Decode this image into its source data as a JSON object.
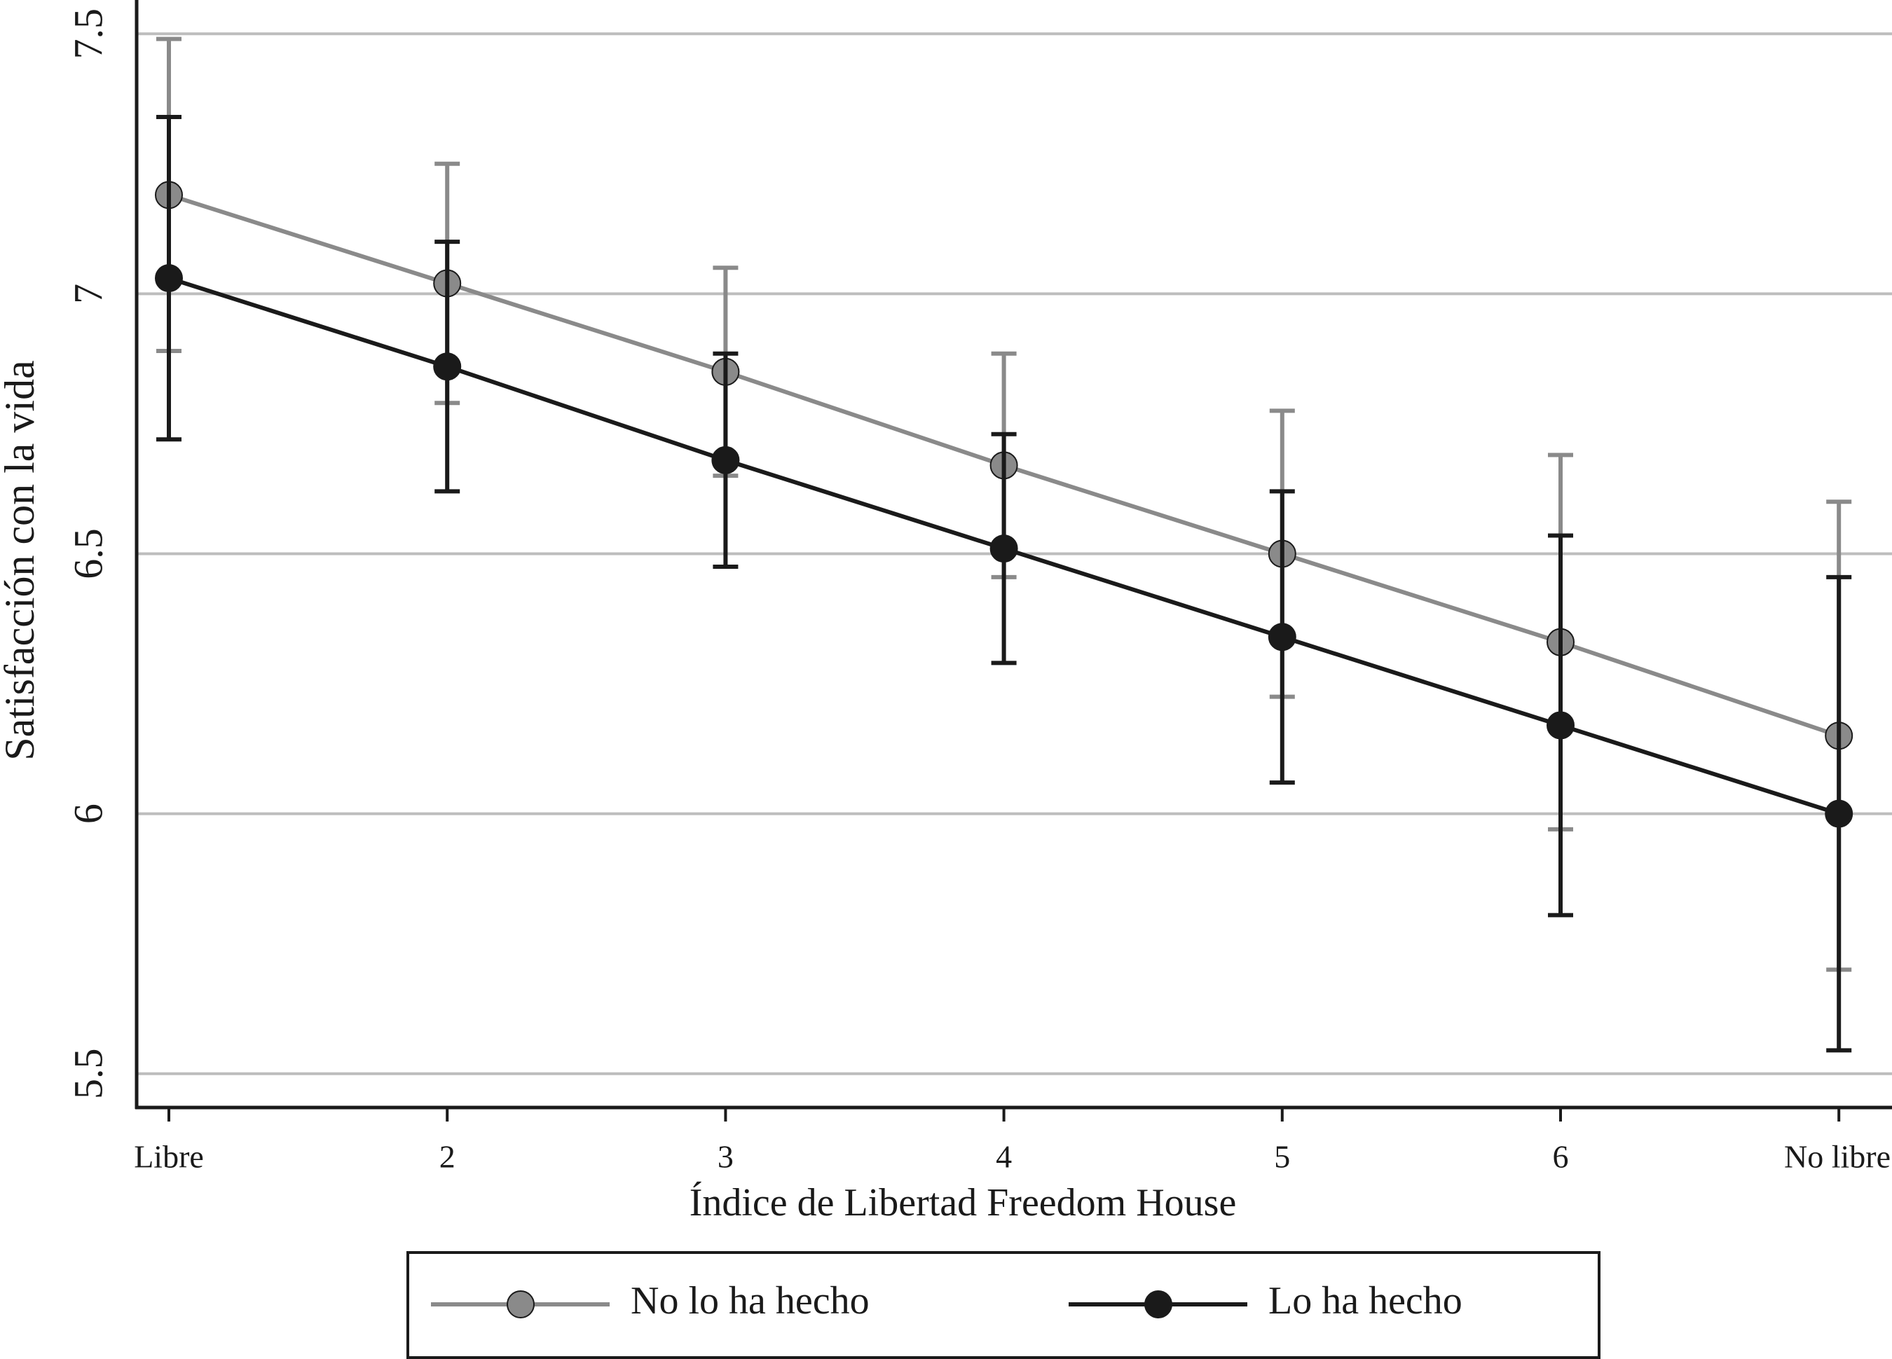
{
  "chart_data": {
    "type": "line",
    "x_label": "Índice de Libertad Freedom House",
    "y_label": "Satisfacción con la vida",
    "categories": [
      "Libre",
      "2",
      "3",
      "4",
      "5",
      "6",
      "No libre"
    ],
    "series": [
      {
        "name": "No lo ha hecho",
        "color": "#8a8a8a",
        "values": [
          7.19,
          7.02,
          6.85,
          6.67,
          6.5,
          6.33,
          6.15
        ],
        "errors": [
          0.3,
          0.23,
          0.2,
          0.215,
          0.275,
          0.36,
          0.45
        ]
      },
      {
        "name": "Lo ha hecho",
        "color": "#1a1a1a",
        "values": [
          7.03,
          6.86,
          6.68,
          6.51,
          6.34,
          6.17,
          6.0
        ],
        "errors": [
          0.31,
          0.24,
          0.205,
          0.22,
          0.28,
          0.365,
          0.455
        ]
      }
    ],
    "ylim": [
      5.435,
      7.565
    ],
    "yticks": [
      5.5,
      6,
      6.5,
      7,
      7.5
    ],
    "grid": true,
    "legend": "bottom"
  }
}
